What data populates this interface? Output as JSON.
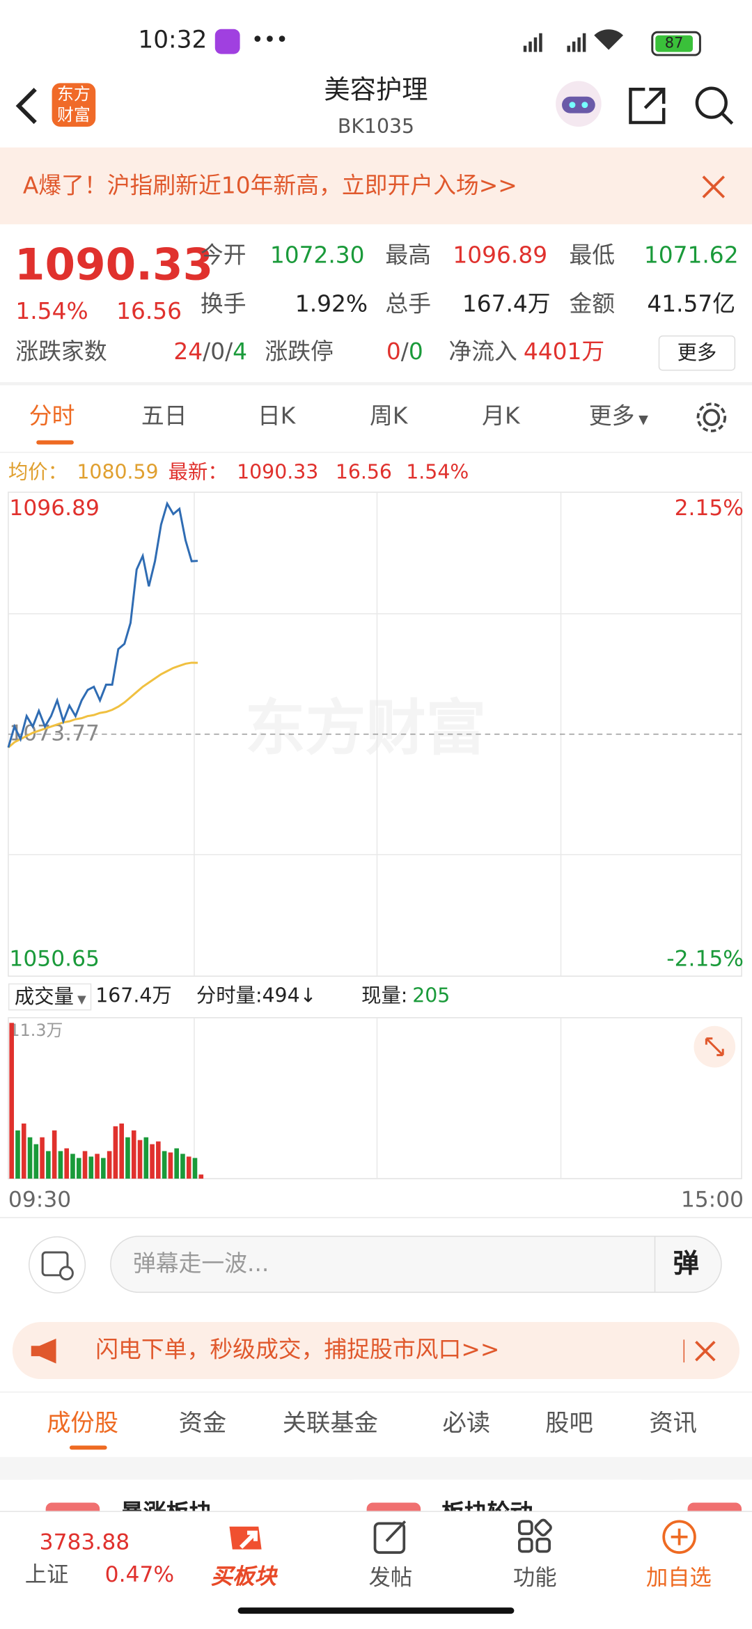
{
  "status_bar": {
    "time": "10:32",
    "battery": "87"
  },
  "header": {
    "logo": "东方财富",
    "title": "美容护理",
    "code": "BK1035"
  },
  "banner": {
    "text": "A爆了！沪指刷新近10年新高，立即开户入场>>"
  },
  "quote": {
    "price": "1090.33",
    "change_pct": "1.54%",
    "change": "16.56",
    "stats": [
      {
        "label": "今开",
        "value": "1072.30"
      },
      {
        "label": "最高",
        "value": "1096.89"
      },
      {
        "label": "最低",
        "value": "1071.62"
      },
      {
        "label": "换手",
        "value": "1.92%"
      },
      {
        "label": "总手",
        "value": "167.4万"
      },
      {
        "label": "金额",
        "value": "41.57亿"
      }
    ],
    "breadth": {
      "label": "涨跌家数",
      "up": "24",
      "flat": "0",
      "down": "4",
      "separator": "/"
    },
    "limit": {
      "label": "涨跌停",
      "up": "0",
      "down": "0"
    },
    "net_inflow": {
      "label": "净流入",
      "value": "4401万"
    },
    "more": "更多"
  },
  "chart_tabs": [
    "分时",
    "五日",
    "日K",
    "周K",
    "月K",
    "更多"
  ],
  "info_line": {
    "latest_label": "最新：",
    "avg": "1080.59",
    "latest": "1090.33",
    "change": "16.56",
    "change_pct": "1.54%"
  },
  "watermark": "东方财富",
  "chart_data": {
    "type": "line",
    "ylim": [
      1050.65,
      1096.89
    ],
    "yticks": [
      1050.65,
      1073.77,
      1096.89
    ],
    "y2lim": [
      -2.15,
      2.15
    ],
    "y2ticks": [
      {
        "value": -2.15,
        "label": "-2.15%"
      },
      {
        "value": 2.15,
        "label": "2.15%"
      }
    ],
    "x_labels": [
      "09:30",
      "15:00"
    ],
    "series": [
      {
        "name": "最新：",
        "color": "#2f6cb3",
        "values": [
          1072.5,
          1074.5,
          1073.3,
          1075.5,
          1074.5,
          1076.0,
          1074.5,
          1075.5,
          1077.0,
          1075.0,
          1076.5,
          1075.5,
          1077.0,
          1078.0,
          1078.3,
          1077.0,
          1078.5,
          1078.5,
          1081.9,
          1082.4,
          1084.4,
          1089.5,
          1090.8,
          1087.9,
          1090.3,
          1093.8,
          1095.8,
          1094.8,
          1095.3,
          1092.3,
          1090.3,
          1090.33
        ]
      },
      {
        "name": "均价：",
        "color": "#f0c040",
        "values": [
          1072.5,
          1073.0,
          1073.3,
          1073.6,
          1073.9,
          1074.1,
          1074.3,
          1074.5,
          1074.7,
          1074.9,
          1075.0,
          1075.2,
          1075.3,
          1075.5,
          1075.6,
          1075.8,
          1075.9,
          1076.1,
          1076.4,
          1076.8,
          1077.3,
          1077.8,
          1078.3,
          1078.7,
          1079.1,
          1079.5,
          1079.8,
          1080.1,
          1080.3,
          1080.5,
          1080.6,
          1080.59
        ]
      }
    ],
    "volume": {
      "label": "成交量",
      "total": "167.4万",
      "minute_label": "分时量:494↓",
      "current_label": "现量:",
      "current": "205",
      "ylim": [
        0,
        11.3
      ],
      "yticks": [
        {
          "value": 11.3,
          "label": "11.3万"
        }
      ],
      "values": [
        11.3,
        3.5,
        4.0,
        3.0,
        2.5,
        3.0,
        2.0,
        3.5,
        2.0,
        2.2,
        1.8,
        1.5,
        2.0,
        1.6,
        1.8,
        1.5,
        2.0,
        3.8,
        4.0,
        3.0,
        3.5,
        2.8,
        3.0,
        2.5,
        2.7,
        2.0,
        1.9,
        2.2,
        1.8,
        1.6,
        1.5,
        0.3
      ],
      "colors": [
        "#e0312d",
        "#1a9a3a",
        "#e0312d",
        "#1a9a3a",
        "#1a9a3a",
        "#e0312d",
        "#1a9a3a",
        "#e0312d",
        "#1a9a3a",
        "#e0312d",
        "#1a9a3a",
        "#1a9a3a",
        "#e0312d",
        "#1a9a3a",
        "#e0312d",
        "#1a9a3a",
        "#e0312d",
        "#e0312d",
        "#e0312d",
        "#1a9a3a",
        "#e0312d",
        "#e0312d",
        "#1a9a3a",
        "#e0312d",
        "#e0312d",
        "#1a9a3a",
        "#e0312d",
        "#1a9a3a",
        "#1a9a3a",
        "#e0312d",
        "#1a9a3a",
        "#e0312d"
      ]
    }
  },
  "danmaku": {
    "placeholder": "弹幕走一波...",
    "button": "弹"
  },
  "ad": {
    "text": "闪电下单，秒级成交，捕捉股市风口>>"
  },
  "section_tabs": [
    "成份股",
    "资金",
    "关联基金",
    "必读",
    "股吧",
    "资讯"
  ],
  "cards": [
    "暴涨板块",
    "板块轮动"
  ],
  "bottom_nav": {
    "index_value": "3783.88",
    "index_name": "上证",
    "index_pct": "0.47%",
    "items": [
      "买板块",
      "发帖",
      "功能",
      "加自选"
    ]
  }
}
